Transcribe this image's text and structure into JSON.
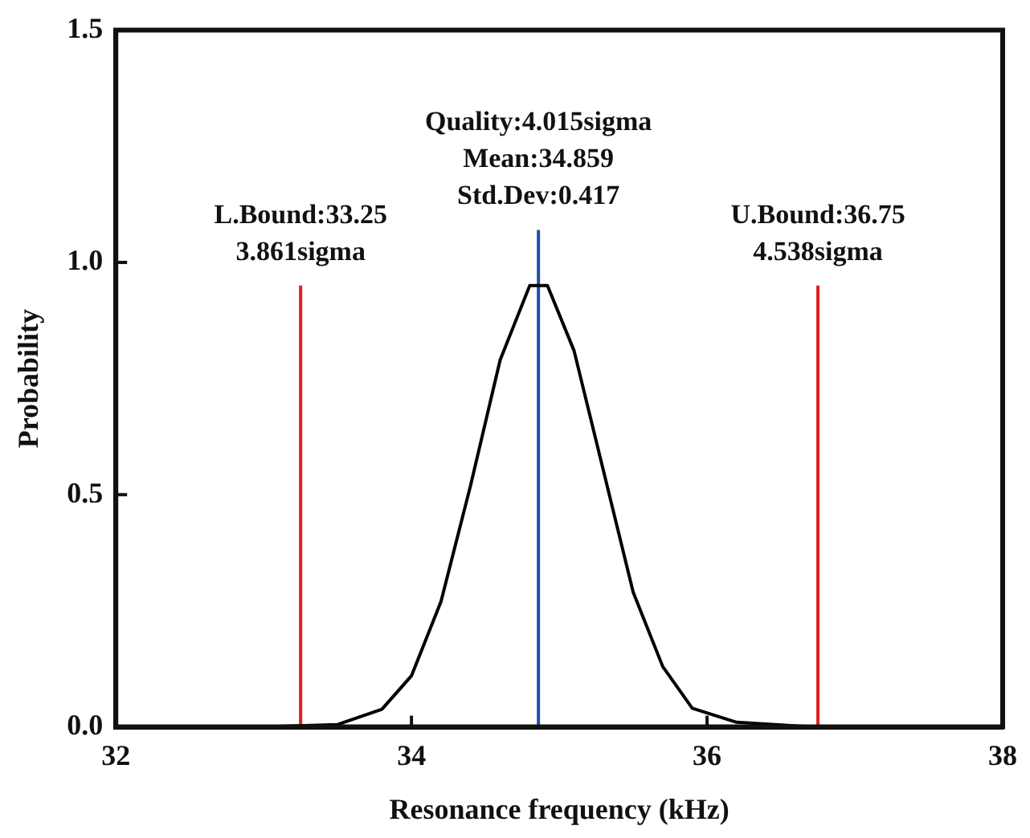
{
  "chart_data": {
    "type": "line",
    "xlabel": "Resonance frequency (kHz)",
    "ylabel": "Probability",
    "xlim": [
      32,
      38
    ],
    "xticks": [
      32,
      34,
      36,
      38
    ],
    "ylim": [
      0,
      1.5
    ],
    "yticks": [
      {
        "value": 0,
        "label": "0.0"
      },
      {
        "value": 0.5,
        "label": "0.5"
      },
      {
        "value": 1,
        "label": "1.0"
      },
      {
        "value": 1.5,
        "label": "1.5"
      }
    ],
    "grid": false,
    "legend": false,
    "marker": "none",
    "line_style": "solid",
    "series": [
      {
        "color": "#000000",
        "x": [
          32.35,
          33.0,
          33.5,
          33.8,
          34.0,
          34.2,
          34.4,
          34.6,
          34.8,
          34.92,
          35.1,
          35.3,
          35.5,
          35.7,
          35.9,
          36.2,
          36.7,
          37.35
        ],
        "values": [
          0,
          0,
          0.005,
          0.038,
          0.11,
          0.27,
          0.52,
          0.79,
          0.95,
          0.95,
          0.81,
          0.55,
          0.29,
          0.13,
          0.04,
          0.01,
          0,
          0
        ]
      },
      {
        "color": "#e02020",
        "x": [
          33.25,
          33.25
        ],
        "values": [
          0,
          0.95
        ]
      },
      {
        "color": "#1f4fa8",
        "x": [
          34.859,
          34.859
        ],
        "values": [
          0,
          1.07
        ]
      },
      {
        "color": "#e02020",
        "x": [
          36.75,
          36.75
        ],
        "values": [
          0,
          0.95
        ]
      }
    ],
    "annotations": [
      "L.Bound:33.25\n3.861sigma",
      "Quality:4.015sigma\nMean:34.859\nStd.Dev:0.417",
      "U.Bound:36.75\n4.538sigma"
    ]
  }
}
